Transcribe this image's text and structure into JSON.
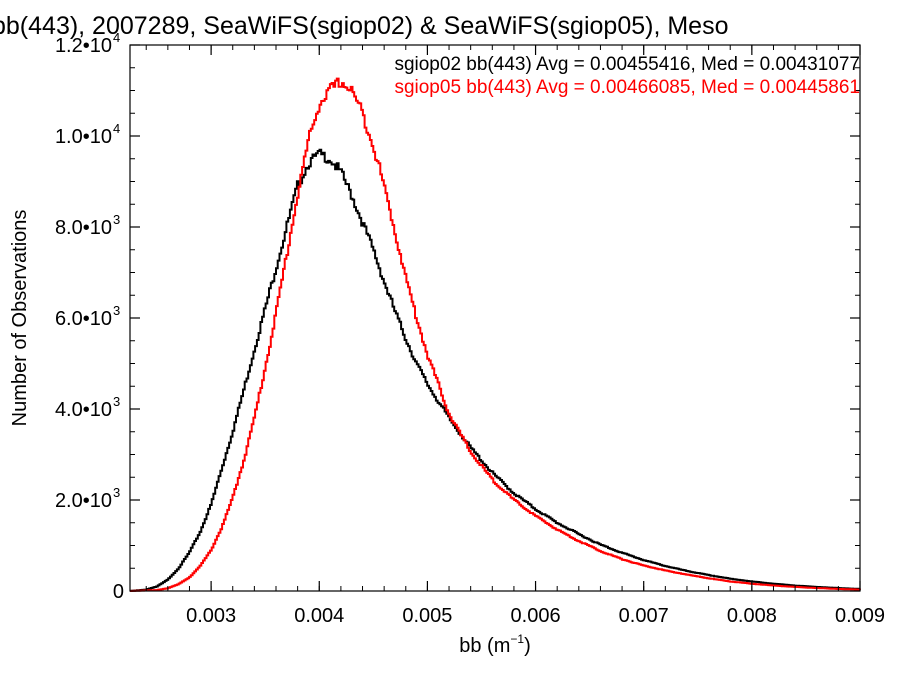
{
  "chart_data": {
    "type": "line",
    "title": "bb(443), 2007289, SeaWiFS(sgiop02) & SeaWiFS(sgiop05), Meso",
    "xlabel": "bb (m",
    "xlabel_sup": "−1",
    "xlabel_end": ")",
    "ylabel": "Number of Observations",
    "xlim": [
      0.00225,
      0.009
    ],
    "ylim": [
      0,
      12000
    ],
    "x_ticks": [
      {
        "value": 0.003,
        "label": "0.003"
      },
      {
        "value": 0.004,
        "label": "0.004"
      },
      {
        "value": 0.005,
        "label": "0.005"
      },
      {
        "value": 0.006,
        "label": "0.006"
      },
      {
        "value": 0.007,
        "label": "0.007"
      },
      {
        "value": 0.008,
        "label": "0.008"
      },
      {
        "value": 0.009,
        "label": "0.009"
      }
    ],
    "y_ticks": [
      {
        "value": 0,
        "label": "0",
        "sup": ""
      },
      {
        "value": 2000,
        "label": "2.0•10",
        "sup": "3"
      },
      {
        "value": 4000,
        "label": "4.0•10",
        "sup": "3"
      },
      {
        "value": 6000,
        "label": "6.0•10",
        "sup": "3"
      },
      {
        "value": 8000,
        "label": "8.0•10",
        "sup": "3"
      },
      {
        "value": 10000,
        "label": "1.0•10",
        "sup": "4"
      },
      {
        "value": 12000,
        "label": "1.2•10",
        "sup": "4"
      }
    ],
    "legend": "top-right",
    "grid": false,
    "series": [
      {
        "name": "sgiop02 bb(443) Avg = 0.00455416, Med = 0.00431077",
        "color": "#000000",
        "x": [
          0.00225,
          0.0024,
          0.0025,
          0.0026,
          0.0027,
          0.0028,
          0.0029,
          0.003,
          0.0031,
          0.0032,
          0.0033,
          0.0034,
          0.0035,
          0.0036,
          0.0037,
          0.0038,
          0.0039,
          0.004,
          0.0041,
          0.0042,
          0.0043,
          0.0044,
          0.0045,
          0.0046,
          0.0047,
          0.0048,
          0.0049,
          0.005,
          0.0052,
          0.0054,
          0.0056,
          0.0058,
          0.006,
          0.0062,
          0.0064,
          0.0066,
          0.0068,
          0.007,
          0.0072,
          0.0074,
          0.0076,
          0.0078,
          0.008,
          0.0082,
          0.0084,
          0.0086,
          0.0088,
          0.009
        ],
        "y": [
          0,
          30,
          100,
          250,
          500,
          850,
          1300,
          1900,
          2700,
          3500,
          4400,
          5300,
          6200,
          7100,
          8000,
          8900,
          9400,
          9600,
          9500,
          9200,
          8700,
          8100,
          7500,
          6800,
          6150,
          5550,
          5000,
          4550,
          3800,
          3150,
          2600,
          2150,
          1800,
          1500,
          1250,
          1020,
          840,
          680,
          550,
          440,
          350,
          270,
          210,
          160,
          120,
          90,
          65,
          45
        ]
      },
      {
        "name": "sgiop05 bb(443) Avg = 0.00466085, Med = 0.00445861",
        "color": "#ff0000",
        "x": [
          0.00225,
          0.0025,
          0.0026,
          0.0027,
          0.0028,
          0.0029,
          0.003,
          0.0031,
          0.0032,
          0.0033,
          0.0034,
          0.0035,
          0.0036,
          0.0037,
          0.0038,
          0.0039,
          0.004,
          0.0041,
          0.0042,
          0.0043,
          0.0044,
          0.0045,
          0.0046,
          0.0047,
          0.0048,
          0.0049,
          0.005,
          0.0051,
          0.0052,
          0.0054,
          0.0056,
          0.0058,
          0.006,
          0.0062,
          0.0064,
          0.0066,
          0.0068,
          0.007,
          0.0072,
          0.0074,
          0.0076,
          0.0078,
          0.008,
          0.0082,
          0.0084,
          0.0086,
          0.0088,
          0.009
        ],
        "y": [
          0,
          20,
          60,
          150,
          300,
          550,
          900,
          1400,
          2050,
          2850,
          3800,
          4900,
          6100,
          7400,
          8700,
          9900,
          10700,
          11000,
          11200,
          11000,
          10500,
          9800,
          8900,
          7900,
          6900,
          6000,
          5200,
          4550,
          3900,
          3050,
          2450,
          2000,
          1650,
          1350,
          1100,
          880,
          700,
          560,
          450,
          360,
          280,
          210,
          160,
          120,
          90,
          65,
          45,
          30
        ]
      }
    ]
  }
}
